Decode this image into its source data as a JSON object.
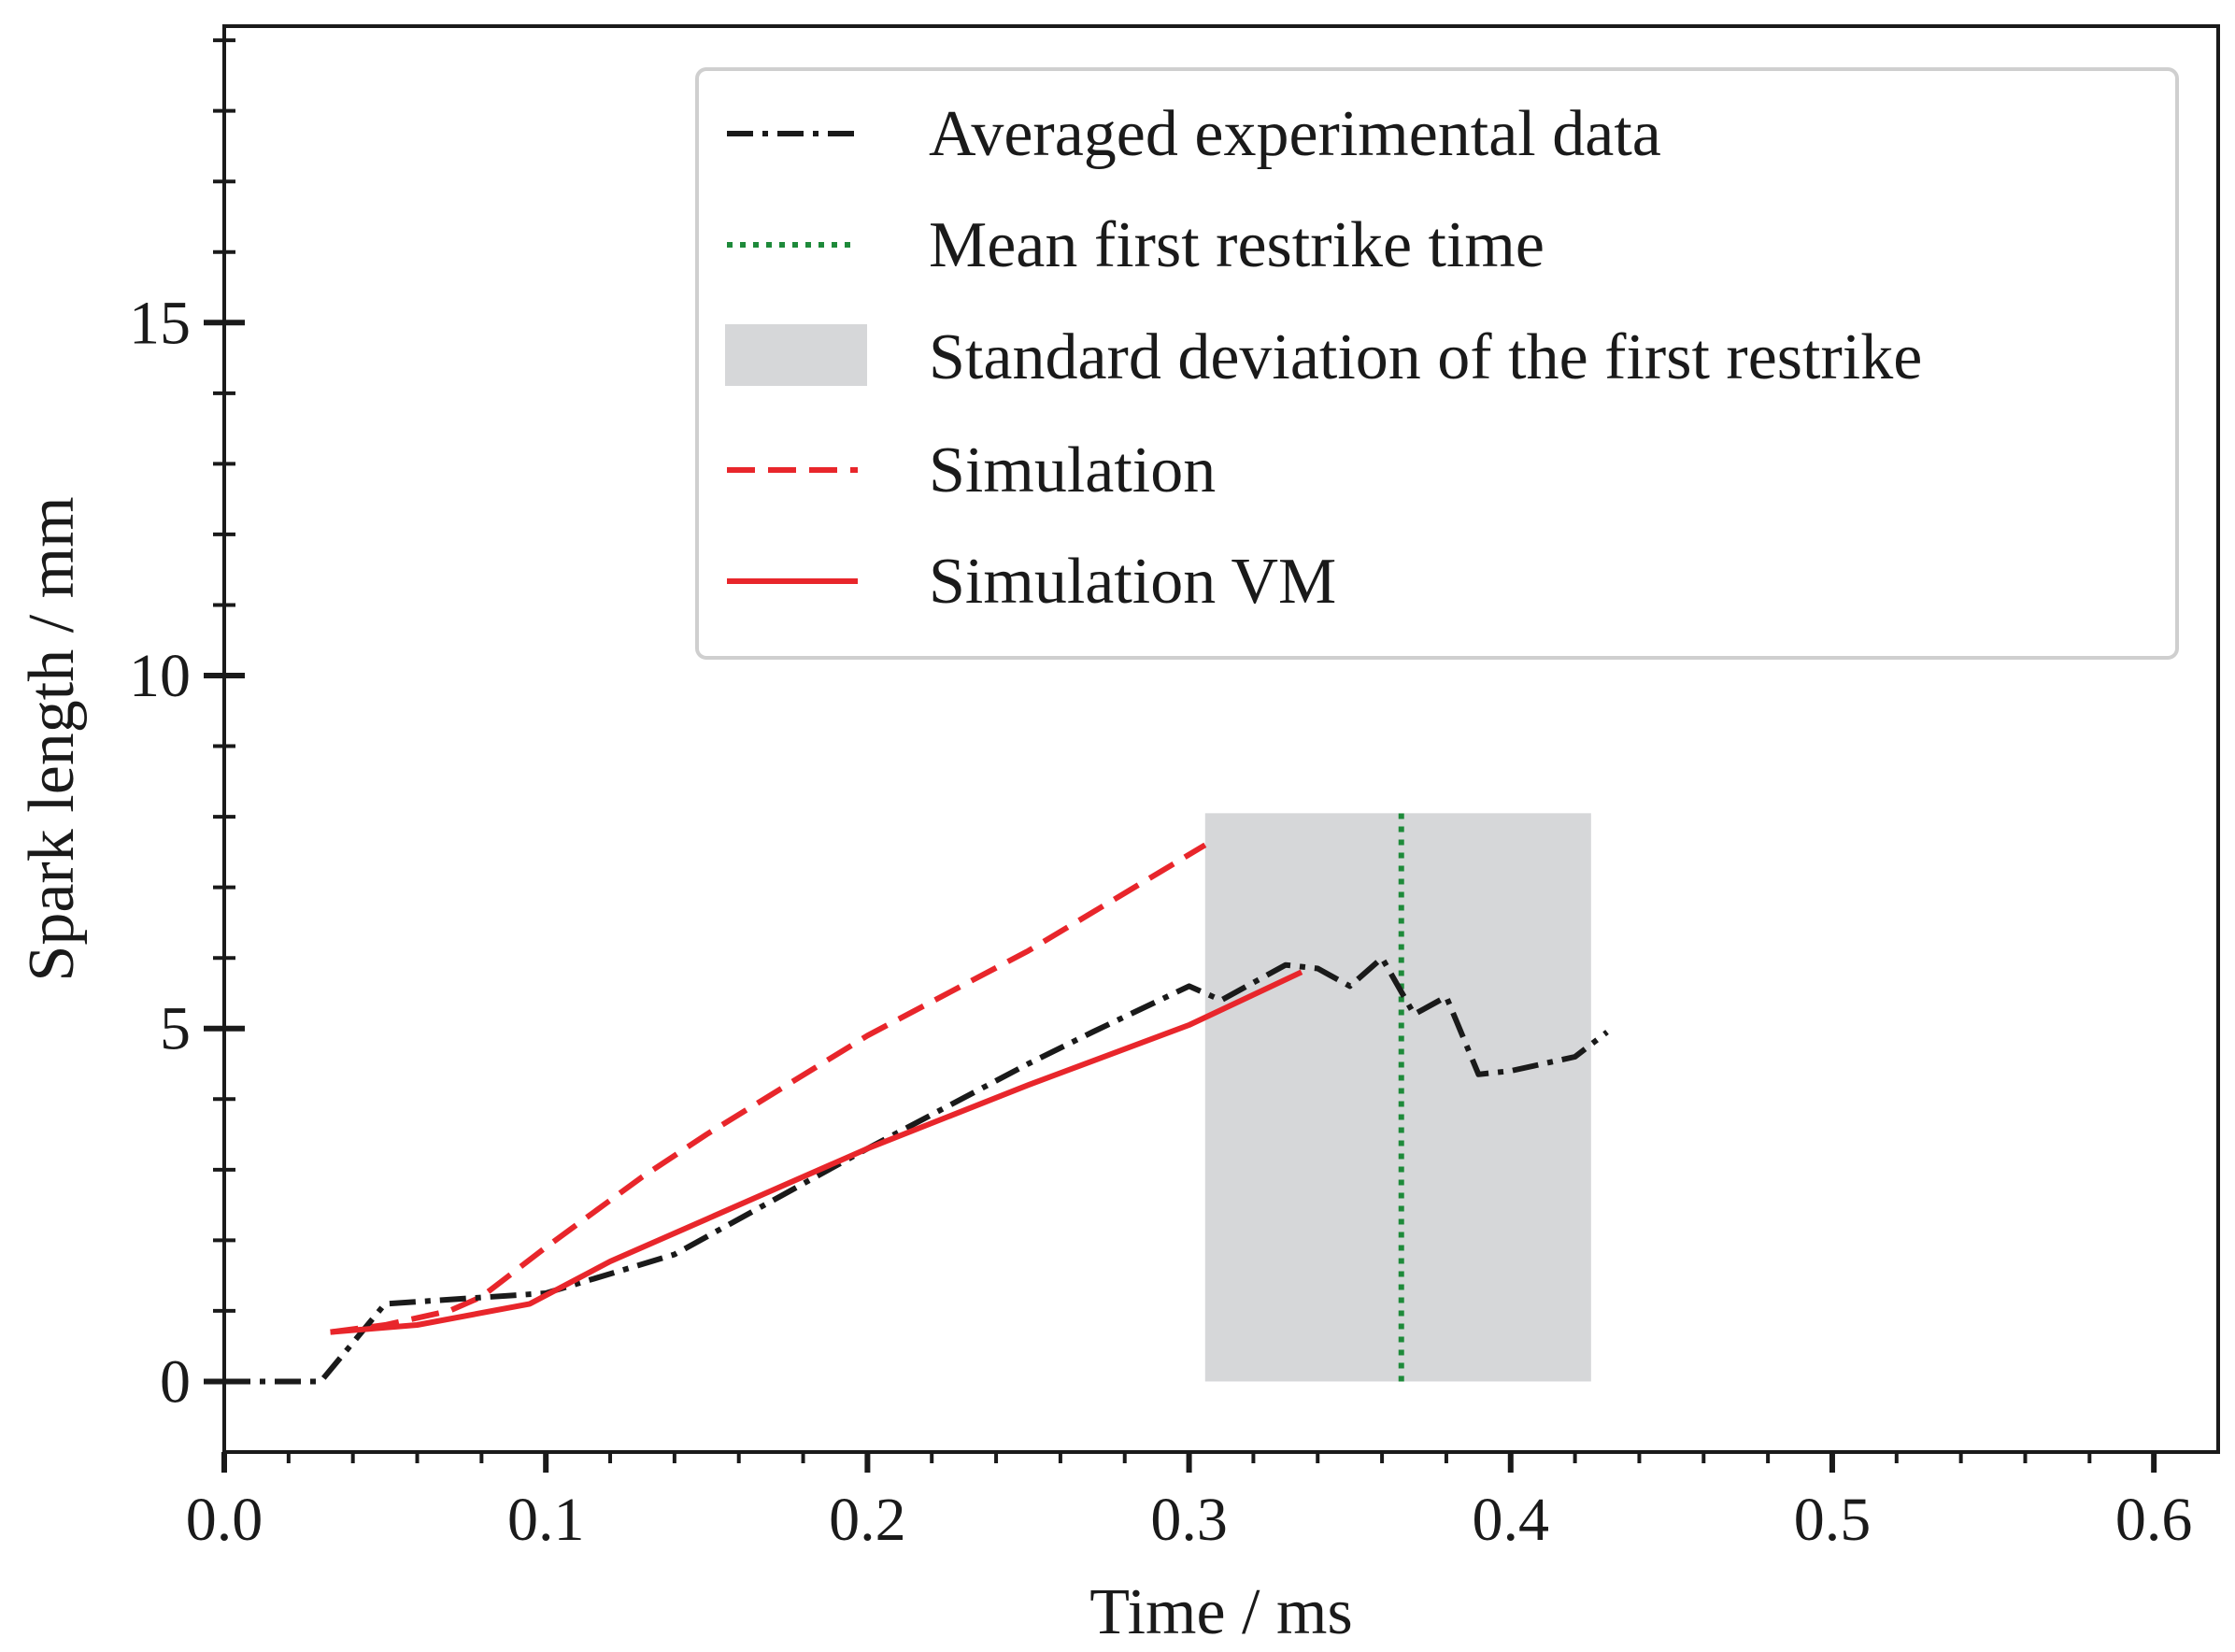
{
  "chart_data": {
    "type": "line",
    "title": "",
    "xlabel": "Time / ms",
    "ylabel": "Spark length / mm",
    "xlim": [
      0.0,
      0.62
    ],
    "ylim": [
      -1.0,
      19.2
    ],
    "xticks": [
      0.0,
      0.1,
      0.2,
      0.3,
      0.4,
      0.5,
      0.6
    ],
    "xtick_labels": [
      "0.0",
      "0.1",
      "0.2",
      "0.3",
      "0.4",
      "0.5",
      "0.6"
    ],
    "yticks": [
      0,
      5,
      10,
      15
    ],
    "ytick_labels": [
      "0",
      "5",
      "10",
      "15"
    ],
    "grid": false,
    "legend_position": "top-right",
    "colors": {
      "experimental": "#1a1a1a",
      "restrike_mean": "#1e8a3a",
      "restrike_band": "#d6d7d9",
      "simulation": "#e8262b",
      "simulation_vm": "#e8262b"
    },
    "band": {
      "name": "Standard deviation of the first restrike",
      "x_range": [
        0.305,
        0.425
      ],
      "y_range": [
        0.0,
        8.05
      ]
    },
    "vline": {
      "name": "Mean first restrike time",
      "x": 0.366,
      "y_range": [
        0.0,
        8.05
      ]
    },
    "series": [
      {
        "name": "Averaged experimental data",
        "style": "dashdot",
        "x": [
          0.0,
          0.03,
          0.05,
          0.1,
          0.14,
          0.18,
          0.2,
          0.25,
          0.27,
          0.3,
          0.31,
          0.33,
          0.34,
          0.35,
          0.36,
          0.37,
          0.38,
          0.39,
          0.4,
          0.42,
          0.43
        ],
        "y": [
          0.0,
          0.0,
          1.1,
          1.25,
          1.8,
          2.8,
          3.3,
          4.5,
          4.95,
          5.6,
          5.4,
          5.9,
          5.85,
          5.6,
          6.0,
          5.2,
          5.45,
          4.35,
          4.4,
          4.6,
          4.95
        ]
      },
      {
        "name": "Mean first restrike time",
        "style": "dotted",
        "x": [
          0.366,
          0.366
        ],
        "y": [
          0.0,
          8.05
        ]
      },
      {
        "name": "Standard deviation of the first restrike",
        "style": "band",
        "x": [
          0.305,
          0.425
        ],
        "y": [
          0.0,
          8.05
        ]
      },
      {
        "name": "Simulation",
        "style": "dashed",
        "x": [
          0.033,
          0.05,
          0.07,
          0.08,
          0.1,
          0.13,
          0.15,
          0.2,
          0.25,
          0.305
        ],
        "y": [
          0.7,
          0.8,
          1.0,
          1.2,
          1.9,
          2.9,
          3.5,
          4.9,
          6.1,
          7.6
        ]
      },
      {
        "name": "Simulation VM",
        "style": "solid",
        "x": [
          0.033,
          0.06,
          0.095,
          0.12,
          0.15,
          0.2,
          0.25,
          0.3,
          0.335
        ],
        "y": [
          0.7,
          0.8,
          1.1,
          1.7,
          2.3,
          3.3,
          4.2,
          5.05,
          5.8
        ]
      }
    ]
  }
}
